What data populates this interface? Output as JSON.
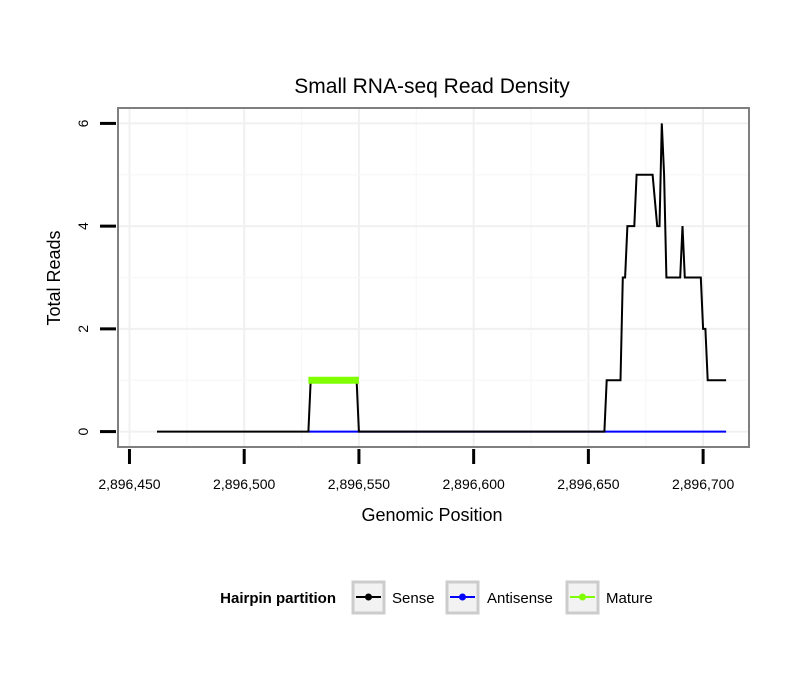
{
  "chart_data": {
    "type": "line",
    "title": "Small RNA-seq Read Density",
    "xlabel": "Genomic Position",
    "ylabel": "Total Reads",
    "xlim": [
      2896445,
      2896720
    ],
    "ylim": [
      -0.3,
      6.3
    ],
    "x_ticks": [
      2896450,
      2896500,
      2896550,
      2896600,
      2896650,
      2896700
    ],
    "x_tick_labels": [
      "2,896,450",
      "2,896,500",
      "2,896,550",
      "2,896,600",
      "2,896,650",
      "2,896,700"
    ],
    "y_ticks": [
      0,
      2,
      4,
      6
    ],
    "y_tick_labels": [
      "0",
      "2",
      "4",
      "6"
    ],
    "grid": true,
    "legend": {
      "title": "Hairpin partition",
      "position": "bottom",
      "entries": [
        "Sense",
        "Antisense",
        "Mature"
      ]
    },
    "series": [
      {
        "name": "Sense",
        "color": "#000000",
        "x": [
          2896462,
          2896528,
          2896529,
          2896549,
          2896550,
          2896657,
          2896658,
          2896664,
          2896665,
          2896666,
          2896667,
          2896670,
          2896671,
          2896677,
          2896678,
          2896680,
          2896681,
          2896682,
          2896683,
          2896684,
          2896686,
          2896690,
          2896691,
          2896692,
          2896693,
          2896699,
          2896700,
          2896701,
          2896702,
          2896710
        ],
        "y": [
          0,
          0,
          1,
          1,
          0,
          0,
          1,
          1,
          3,
          3,
          4,
          4,
          5,
          5,
          5,
          4,
          4,
          6,
          5,
          3,
          3,
          3,
          4,
          3,
          3,
          3,
          2,
          2,
          1,
          1
        ]
      },
      {
        "name": "Antisense",
        "color": "#0000ff",
        "x": [
          2896528,
          2896710
        ],
        "y": [
          0,
          0
        ]
      },
      {
        "name": "Mature",
        "color": "#7fff00",
        "x": [
          2896528,
          2896550
        ],
        "y": [
          1,
          1
        ]
      }
    ]
  }
}
